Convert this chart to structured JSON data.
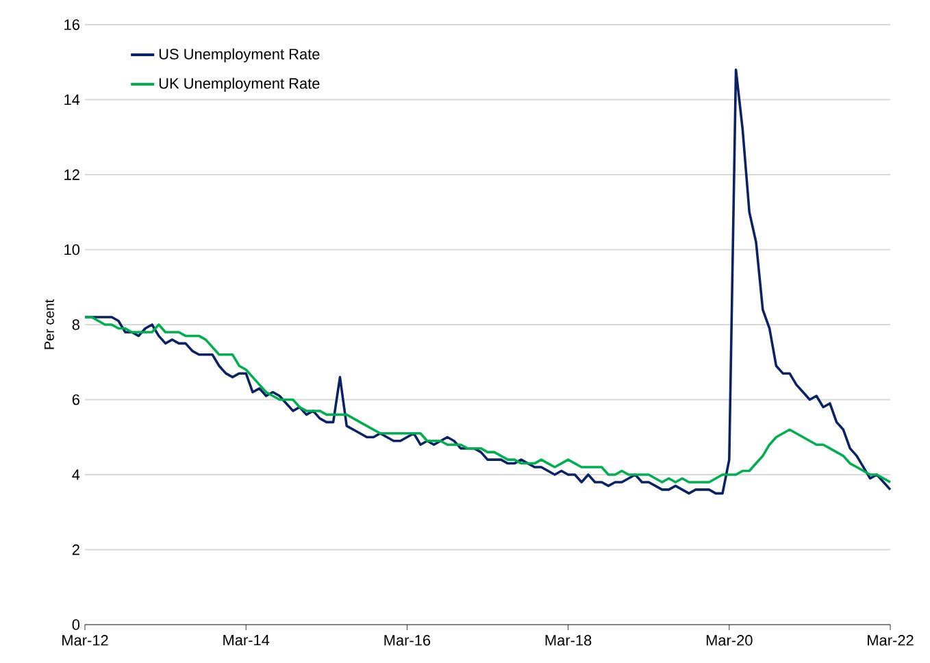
{
  "chart_data": {
    "type": "line",
    "ylabel": "Per cent",
    "x": [
      "2012-03",
      "2012-04",
      "2012-05",
      "2012-06",
      "2012-07",
      "2012-08",
      "2012-09",
      "2012-10",
      "2012-11",
      "2012-12",
      "2013-01",
      "2013-02",
      "2013-03",
      "2013-04",
      "2013-05",
      "2013-06",
      "2013-07",
      "2013-08",
      "2013-09",
      "2013-10",
      "2013-11",
      "2013-12",
      "2014-01",
      "2014-02",
      "2014-03",
      "2014-04",
      "2014-05",
      "2014-06",
      "2014-07",
      "2014-08",
      "2014-09",
      "2014-10",
      "2014-11",
      "2014-12",
      "2015-01",
      "2015-02",
      "2015-03",
      "2015-04",
      "2015-05",
      "2015-06",
      "2015-07",
      "2015-08",
      "2015-09",
      "2015-10",
      "2015-11",
      "2015-12",
      "2016-01",
      "2016-02",
      "2016-03",
      "2016-04",
      "2016-05",
      "2016-06",
      "2016-07",
      "2016-08",
      "2016-09",
      "2016-10",
      "2016-11",
      "2016-12",
      "2017-01",
      "2017-02",
      "2017-03",
      "2017-04",
      "2017-05",
      "2017-06",
      "2017-07",
      "2017-08",
      "2017-09",
      "2017-10",
      "2017-11",
      "2017-12",
      "2018-01",
      "2018-02",
      "2018-03",
      "2018-04",
      "2018-05",
      "2018-06",
      "2018-07",
      "2018-08",
      "2018-09",
      "2018-10",
      "2018-11",
      "2018-12",
      "2019-01",
      "2019-02",
      "2019-03",
      "2019-04",
      "2019-05",
      "2019-06",
      "2019-07",
      "2019-08",
      "2019-09",
      "2019-10",
      "2019-11",
      "2019-12",
      "2020-01",
      "2020-02",
      "2020-03",
      "2020-04",
      "2020-05",
      "2020-06",
      "2020-07",
      "2020-08",
      "2020-09",
      "2020-10",
      "2020-11",
      "2020-12",
      "2021-01",
      "2021-02",
      "2021-03",
      "2021-04",
      "2021-05",
      "2021-06",
      "2021-07",
      "2021-08",
      "2021-09",
      "2021-10",
      "2021-11",
      "2021-12",
      "2022-01",
      "2022-02",
      "2022-03"
    ],
    "series": [
      {
        "name": "US Unemployment Rate",
        "color": "#0b2265",
        "values": [
          8.2,
          8.2,
          8.2,
          8.2,
          8.2,
          8.1,
          7.8,
          7.8,
          7.7,
          7.9,
          8.0,
          7.7,
          7.5,
          7.6,
          7.5,
          7.5,
          7.3,
          7.2,
          7.2,
          7.2,
          6.9,
          6.7,
          6.6,
          6.7,
          6.7,
          6.2,
          6.3,
          6.1,
          6.2,
          6.1,
          5.9,
          5.7,
          5.8,
          5.6,
          5.7,
          5.5,
          5.4,
          5.4,
          6.6,
          5.3,
          5.2,
          5.1,
          5.0,
          5.0,
          5.1,
          5.0,
          4.9,
          4.9,
          5.0,
          5.1,
          4.8,
          4.9,
          4.8,
          4.9,
          5.0,
          4.9,
          4.7,
          4.7,
          4.7,
          4.6,
          4.4,
          4.4,
          4.4,
          4.3,
          4.3,
          4.4,
          4.3,
          4.2,
          4.2,
          4.1,
          4.0,
          4.1,
          4.0,
          4.0,
          3.8,
          4.0,
          3.8,
          3.8,
          3.7,
          3.8,
          3.8,
          3.9,
          4.0,
          3.8,
          3.8,
          3.7,
          3.6,
          3.6,
          3.7,
          3.6,
          3.5,
          3.6,
          3.6,
          3.6,
          3.5,
          3.5,
          4.4,
          14.8,
          13.2,
          11.0,
          10.2,
          8.4,
          7.9,
          6.9,
          6.7,
          6.7,
          6.4,
          6.2,
          6.0,
          6.1,
          5.8,
          5.9,
          5.4,
          5.2,
          4.7,
          4.5,
          4.2,
          3.9,
          4.0,
          3.8,
          3.6
        ]
      },
      {
        "name": "UK Unemployment Rate",
        "color": "#00b050",
        "values": [
          8.2,
          8.2,
          8.1,
          8.0,
          8.0,
          7.9,
          7.9,
          7.8,
          7.8,
          7.8,
          7.8,
          8.0,
          7.8,
          7.8,
          7.8,
          7.7,
          7.7,
          7.7,
          7.6,
          7.4,
          7.2,
          7.2,
          7.2,
          6.9,
          6.8,
          6.6,
          6.4,
          6.2,
          6.1,
          6.0,
          6.0,
          6.0,
          5.8,
          5.7,
          5.7,
          5.7,
          5.6,
          5.6,
          5.6,
          5.6,
          5.5,
          5.4,
          5.3,
          5.2,
          5.1,
          5.1,
          5.1,
          5.1,
          5.1,
          5.1,
          5.1,
          4.9,
          4.9,
          4.9,
          4.8,
          4.8,
          4.8,
          4.7,
          4.7,
          4.7,
          4.6,
          4.6,
          4.5,
          4.4,
          4.4,
          4.3,
          4.3,
          4.3,
          4.4,
          4.3,
          4.2,
          4.3,
          4.4,
          4.3,
          4.2,
          4.2,
          4.2,
          4.2,
          4.0,
          4.0,
          4.1,
          4.0,
          4.0,
          4.0,
          4.0,
          3.9,
          3.8,
          3.9,
          3.8,
          3.9,
          3.8,
          3.8,
          3.8,
          3.8,
          3.9,
          4.0,
          4.0,
          4.0,
          4.1,
          4.1,
          4.3,
          4.5,
          4.8,
          5.0,
          5.1,
          5.2,
          5.1,
          5.0,
          4.9,
          4.8,
          4.8,
          4.7,
          4.6,
          4.5,
          4.3,
          4.2,
          4.1,
          4.0,
          4.0,
          3.9,
          3.8
        ]
      }
    ],
    "xlim": [
      "2012-03",
      "2022-03"
    ],
    "xticks": [
      {
        "value": "2012-03",
        "label": "Mar-12"
      },
      {
        "value": "2014-03",
        "label": "Mar-14"
      },
      {
        "value": "2016-03",
        "label": "Mar-16"
      },
      {
        "value": "2018-03",
        "label": "Mar-18"
      },
      {
        "value": "2020-03",
        "label": "Mar-20"
      },
      {
        "value": "2022-03",
        "label": "Mar-22"
      }
    ],
    "ylim": [
      0,
      16
    ],
    "yticks": [
      0,
      2,
      4,
      6,
      8,
      10,
      12,
      14,
      16
    ],
    "grid": "y",
    "legend": "top left",
    "marker": "none",
    "line_style": "solid"
  }
}
